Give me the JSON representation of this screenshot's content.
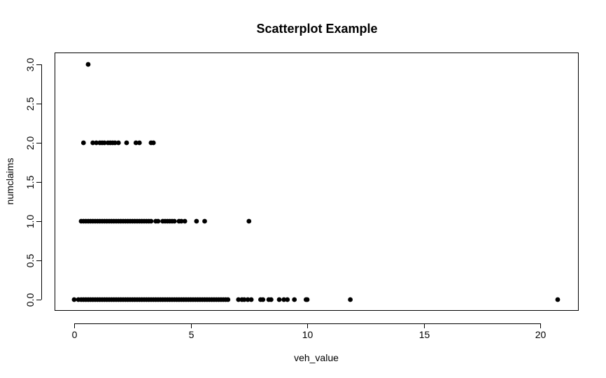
{
  "chart_data": {
    "type": "scatter",
    "title": "Scatterplot Example",
    "xlabel": "veh_value",
    "ylabel": "numclaims",
    "xlim": [
      0,
      21
    ],
    "ylim": [
      0,
      3
    ],
    "x_ticks": [
      0,
      5,
      10,
      15,
      20
    ],
    "y_ticks": [
      0.0,
      0.5,
      1.0,
      1.5,
      2.0,
      2.5,
      3.0
    ],
    "x_tick_labels": [
      "0",
      "5",
      "10",
      "15",
      "20"
    ],
    "y_tick_labels": [
      "0.0",
      "0.5",
      "1.0",
      "1.5",
      "2.0",
      "2.5",
      "3.0"
    ],
    "grid": false,
    "series": [
      {
        "color": "#000000",
        "points": [
          [
            0.0,
            0
          ],
          [
            0.18,
            0
          ],
          [
            0.3,
            0
          ],
          [
            0.4,
            0
          ],
          [
            0.5,
            0
          ],
          [
            0.6,
            0
          ],
          [
            0.7,
            0
          ],
          [
            0.8,
            0
          ],
          [
            0.9,
            0
          ],
          [
            1.0,
            0
          ],
          [
            1.1,
            0
          ],
          [
            1.2,
            0
          ],
          [
            1.3,
            0
          ],
          [
            1.4,
            0
          ],
          [
            1.5,
            0
          ],
          [
            1.6,
            0
          ],
          [
            1.7,
            0
          ],
          [
            1.8,
            0
          ],
          [
            1.9,
            0
          ],
          [
            2.0,
            0
          ],
          [
            2.1,
            0
          ],
          [
            2.2,
            0
          ],
          [
            2.3,
            0
          ],
          [
            2.4,
            0
          ],
          [
            2.5,
            0
          ],
          [
            2.6,
            0
          ],
          [
            2.7,
            0
          ],
          [
            2.8,
            0
          ],
          [
            2.9,
            0
          ],
          [
            3.0,
            0
          ],
          [
            3.1,
            0
          ],
          [
            3.2,
            0
          ],
          [
            3.3,
            0
          ],
          [
            3.4,
            0
          ],
          [
            3.5,
            0
          ],
          [
            3.6,
            0
          ],
          [
            3.7,
            0
          ],
          [
            3.8,
            0
          ],
          [
            3.9,
            0
          ],
          [
            4.0,
            0
          ],
          [
            4.1,
            0
          ],
          [
            4.2,
            0
          ],
          [
            4.3,
            0
          ],
          [
            4.4,
            0
          ],
          [
            4.5,
            0
          ],
          [
            4.6,
            0
          ],
          [
            4.7,
            0
          ],
          [
            4.8,
            0
          ],
          [
            4.9,
            0
          ],
          [
            5.0,
            0
          ],
          [
            5.1,
            0
          ],
          [
            5.2,
            0
          ],
          [
            5.3,
            0
          ],
          [
            5.4,
            0
          ],
          [
            5.5,
            0
          ],
          [
            5.6,
            0
          ],
          [
            5.7,
            0
          ],
          [
            5.8,
            0
          ],
          [
            5.9,
            0
          ],
          [
            6.0,
            0
          ],
          [
            6.1,
            0
          ],
          [
            6.2,
            0
          ],
          [
            6.3,
            0
          ],
          [
            6.4,
            0
          ],
          [
            6.5,
            0
          ],
          [
            6.6,
            0
          ],
          [
            7.05,
            0
          ],
          [
            7.2,
            0
          ],
          [
            7.3,
            0
          ],
          [
            7.45,
            0
          ],
          [
            7.6,
            0
          ],
          [
            8.0,
            0
          ],
          [
            8.1,
            0
          ],
          [
            8.35,
            0
          ],
          [
            8.45,
            0
          ],
          [
            8.8,
            0
          ],
          [
            9.0,
            0
          ],
          [
            9.15,
            0
          ],
          [
            9.45,
            0
          ],
          [
            9.95,
            0
          ],
          [
            10.0,
            0
          ],
          [
            11.85,
            0
          ],
          [
            20.75,
            0
          ],
          [
            0.3,
            1
          ],
          [
            0.4,
            1
          ],
          [
            0.5,
            1
          ],
          [
            0.6,
            1
          ],
          [
            0.7,
            1
          ],
          [
            0.8,
            1
          ],
          [
            0.9,
            1
          ],
          [
            1.0,
            1
          ],
          [
            1.1,
            1
          ],
          [
            1.2,
            1
          ],
          [
            1.3,
            1
          ],
          [
            1.4,
            1
          ],
          [
            1.5,
            1
          ],
          [
            1.6,
            1
          ],
          [
            1.7,
            1
          ],
          [
            1.8,
            1
          ],
          [
            1.9,
            1
          ],
          [
            2.0,
            1
          ],
          [
            2.1,
            1
          ],
          [
            2.2,
            1
          ],
          [
            2.3,
            1
          ],
          [
            2.4,
            1
          ],
          [
            2.5,
            1
          ],
          [
            2.6,
            1
          ],
          [
            2.7,
            1
          ],
          [
            2.8,
            1
          ],
          [
            2.9,
            1
          ],
          [
            3.0,
            1
          ],
          [
            3.1,
            1
          ],
          [
            3.2,
            1
          ],
          [
            3.3,
            1
          ],
          [
            3.5,
            1
          ],
          [
            3.6,
            1
          ],
          [
            3.8,
            1
          ],
          [
            3.9,
            1
          ],
          [
            4.0,
            1
          ],
          [
            4.1,
            1
          ],
          [
            4.2,
            1
          ],
          [
            4.3,
            1
          ],
          [
            4.5,
            1
          ],
          [
            4.6,
            1
          ],
          [
            4.75,
            1
          ],
          [
            5.25,
            1
          ],
          [
            5.6,
            1
          ],
          [
            7.5,
            1
          ],
          [
            0.4,
            2
          ],
          [
            0.8,
            2
          ],
          [
            0.95,
            2
          ],
          [
            1.1,
            2
          ],
          [
            1.2,
            2
          ],
          [
            1.3,
            2
          ],
          [
            1.45,
            2
          ],
          [
            1.55,
            2
          ],
          [
            1.65,
            2
          ],
          [
            1.75,
            2
          ],
          [
            1.9,
            2
          ],
          [
            2.25,
            2
          ],
          [
            2.65,
            2
          ],
          [
            2.8,
            2
          ],
          [
            3.3,
            2
          ],
          [
            3.4,
            2
          ],
          [
            0.6,
            3
          ]
        ]
      }
    ]
  }
}
